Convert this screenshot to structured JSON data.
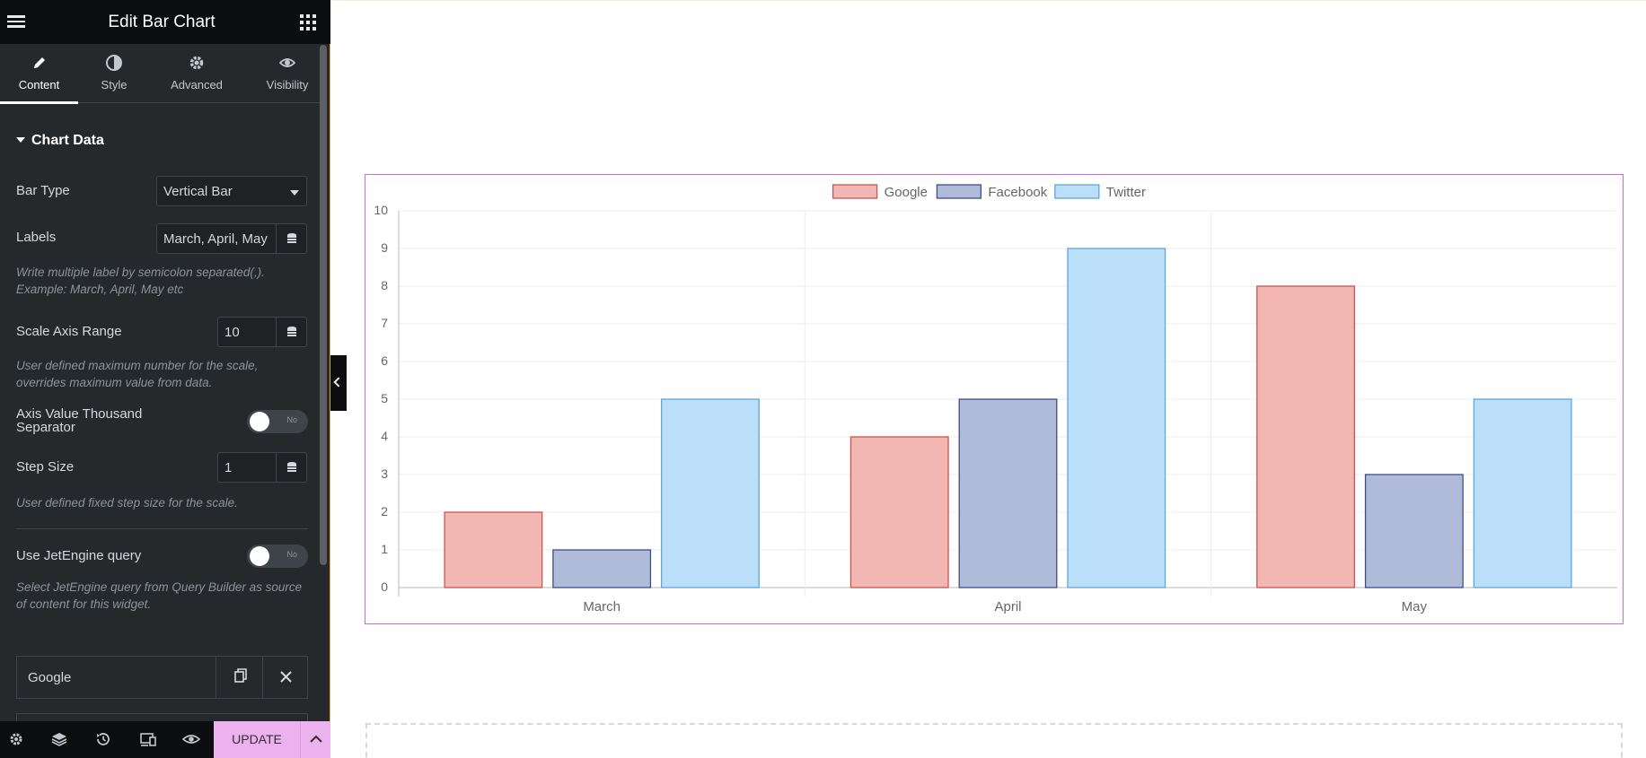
{
  "panel": {
    "title": "Edit Bar Chart",
    "tabs": [
      {
        "label": "Content",
        "icon": "pencil-icon",
        "active": true
      },
      {
        "label": "Style",
        "icon": "half-circle-icon"
      },
      {
        "label": "Advanced",
        "icon": "gear-icon"
      },
      {
        "label": "Visibility",
        "icon": "eye-icon"
      }
    ],
    "section": {
      "title": "Chart Data"
    },
    "bar_type": {
      "label": "Bar Type",
      "value": "Vertical Bar"
    },
    "labels": {
      "label": "Labels",
      "value": "March, April, May",
      "help_line1": "Write multiple label by semicolon separated(,).",
      "help_line2": "Example: March, April, May etc"
    },
    "scale_axis_range": {
      "label": "Scale Axis Range",
      "value": "10",
      "help_line1": "User defined maximum number for the scale,",
      "help_line2": "overrides maximum value from data."
    },
    "thousand_separator": {
      "label_line1": "Axis Value Thousand",
      "label_line2": "Separator",
      "toggle": "No"
    },
    "step_size": {
      "label": "Step Size",
      "value": "1",
      "help": "User defined fixed step size for the scale."
    },
    "jetengine": {
      "label": "Use JetEngine query",
      "toggle": "No",
      "help_line1": "Select JetEngine query from Query Builder as source",
      "help_line2": "of content for this widget."
    },
    "repeater_item": {
      "title": "Google"
    }
  },
  "footer": {
    "update_label": "UPDATE"
  },
  "colors": {
    "accent": "#e6a43c",
    "update_bg": "#ebb2ef",
    "selection_border": "#c56ed2"
  },
  "chart_data": {
    "type": "bar",
    "categories": [
      "March",
      "April",
      "May"
    ],
    "series": [
      {
        "name": "Google",
        "values": [
          2,
          4,
          8
        ],
        "fill": "#f2b6b3",
        "stroke": "#c9564f"
      },
      {
        "name": "Facebook",
        "values": [
          1,
          5,
          3
        ],
        "fill": "#b0bbd9",
        "stroke": "#3d4e85"
      },
      {
        "name": "Twitter",
        "values": [
          5,
          9,
          5
        ],
        "fill": "#bbdff8",
        "stroke": "#5fa6d8"
      }
    ],
    "ylim": [
      0,
      10
    ],
    "yticks": [
      0,
      1,
      2,
      3,
      4,
      5,
      6,
      7,
      8,
      9,
      10
    ],
    "grid": true,
    "legend_position": "top-center"
  }
}
